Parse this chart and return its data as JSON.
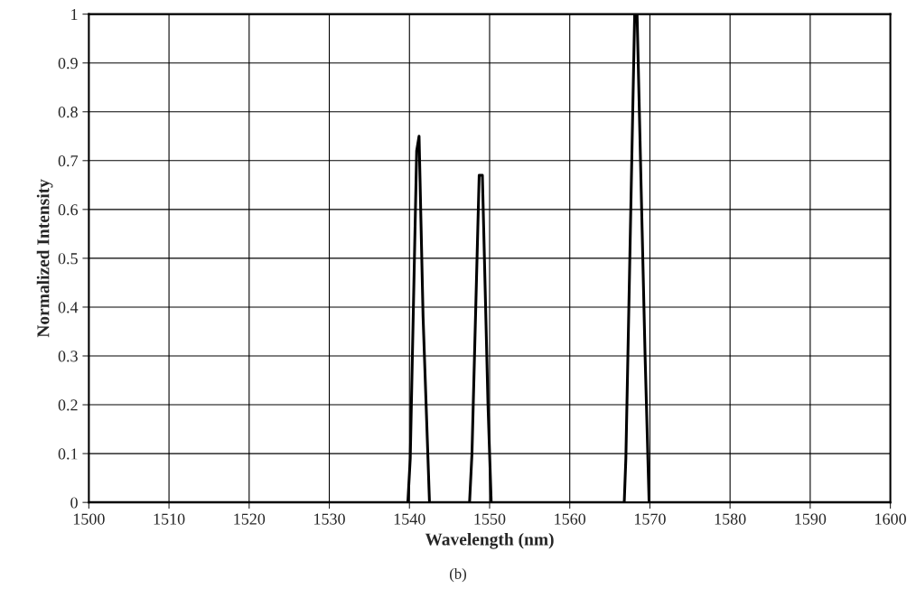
{
  "chart_data": {
    "type": "line",
    "xlabel": "Wavelength (nm)",
    "ylabel": "Normalized Intensity",
    "annotations": [
      "(b)"
    ],
    "x": [
      1500,
      1539.8,
      1540.1,
      1540.9,
      1541.2,
      1541.7,
      1542.5,
      1547.5,
      1547.8,
      1548.7,
      1549.1,
      1549.8,
      1550.2,
      1566.8,
      1567.0,
      1568.1,
      1568.4,
      1569.4,
      1569.9,
      1600
    ],
    "series": [
      {
        "color": "#000000",
        "values": [
          0,
          0,
          0.09,
          0.72,
          0.75,
          0.38,
          0,
          0,
          0.1,
          0.67,
          0.67,
          0.2,
          0,
          0,
          0.09,
          1.0,
          1.0,
          0.3,
          0,
          0
        ]
      }
    ],
    "xlim": [
      1500,
      1600
    ],
    "ylim": [
      0,
      1
    ],
    "xticks": [
      1500,
      1510,
      1520,
      1530,
      1540,
      1550,
      1560,
      1570,
      1580,
      1590,
      1600
    ],
    "yticks": [
      0,
      0.1,
      0.2,
      0.3,
      0.4,
      0.5,
      0.6,
      0.7,
      0.8,
      0.9,
      1
    ],
    "grid": true,
    "marker": "none",
    "line_style": "solid"
  }
}
